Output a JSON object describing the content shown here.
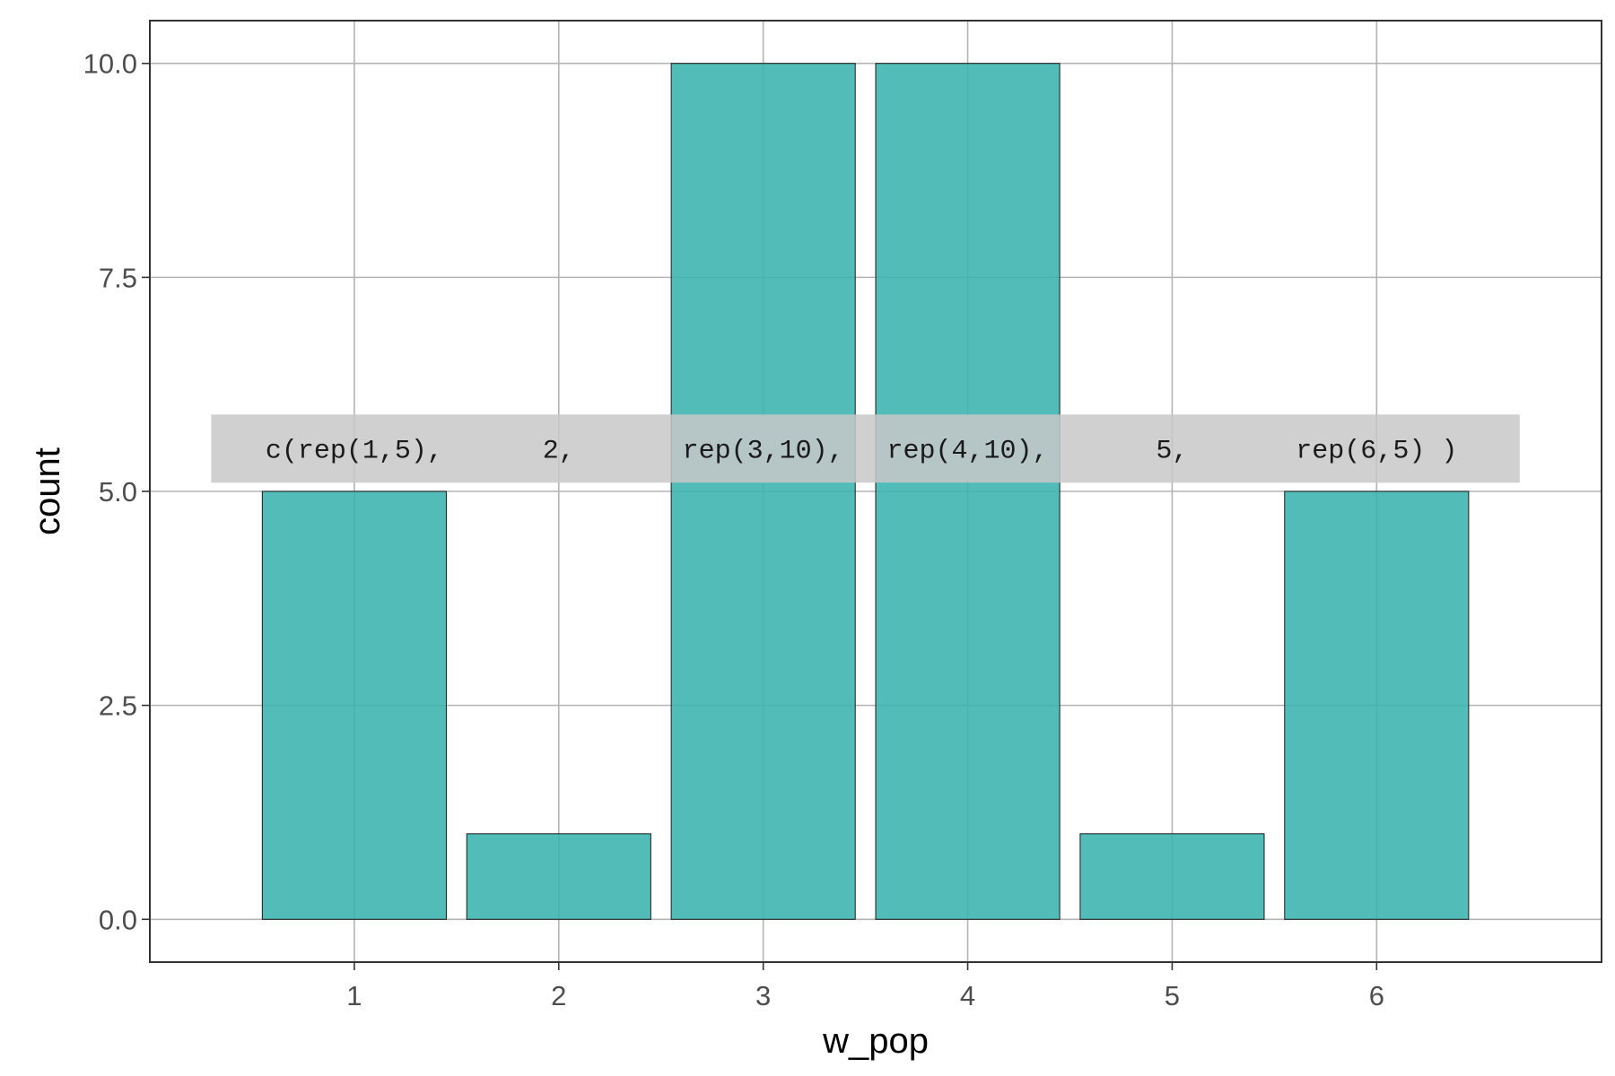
{
  "chart_data": {
    "type": "bar",
    "categories": [
      "1",
      "2",
      "3",
      "4",
      "5",
      "6"
    ],
    "values": [
      5,
      1,
      10,
      10,
      1,
      5
    ],
    "title": "",
    "xlabel": "w_pop",
    "ylabel": "count",
    "ylim": [
      -0.5,
      10.5
    ],
    "yticks": [
      0,
      2.5,
      5,
      7.5,
      10
    ],
    "ytick_labels": [
      "0.0",
      "2.5",
      "5.0",
      "7.5",
      "10.0"
    ],
    "grid": true,
    "bar_color": "#3ab3ae",
    "bar_outline": "#1a1a1a",
    "annotation": {
      "y_value": 5.5,
      "band_color": "#c8c8c8",
      "segments": [
        {
          "x": 1,
          "text": "c(rep(1,5),"
        },
        {
          "x": 2,
          "text": "2,"
        },
        {
          "x": 3,
          "text": "rep(3,10),"
        },
        {
          "x": 4,
          "text": "rep(4,10),"
        },
        {
          "x": 5,
          "text": "5,"
        },
        {
          "x": 6,
          "text": "rep(6,5) )"
        }
      ]
    }
  }
}
